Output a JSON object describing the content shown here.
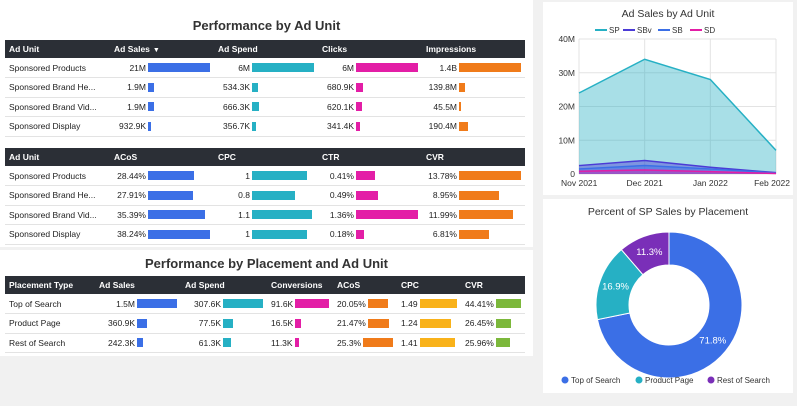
{
  "colors": {
    "blue": "#3b6fe6",
    "teal": "#26b0c4",
    "pink": "#e31ea6",
    "orange": "#f07b1a",
    "yellow": "#f9b21a",
    "green": "#7cb83b",
    "purple": "#7a2fb8"
  },
  "section1": {
    "title": "Performance by Ad Unit",
    "table1": {
      "headers": [
        "Ad Unit",
        "Ad Sales",
        "Ad Spend",
        "Clicks",
        "Impressions"
      ],
      "rows": [
        {
          "unit": "Sponsored Products",
          "ad_sales": "21M",
          "ad_sales_frac": 1.0,
          "ad_spend": "6M",
          "ad_spend_frac": 1.0,
          "clicks": "6M",
          "clicks_frac": 1.0,
          "impressions": "1.4B",
          "impressions_frac": 1.0
        },
        {
          "unit": "Sponsored Brand He...",
          "ad_sales": "1.9M",
          "ad_sales_frac": 0.09,
          "ad_spend": "534.3K",
          "ad_spend_frac": 0.09,
          "clicks": "680.9K",
          "clicks_frac": 0.11,
          "impressions": "139.8M",
          "impressions_frac": 0.1
        },
        {
          "unit": "Sponsored Brand Vid...",
          "ad_sales": "1.9M",
          "ad_sales_frac": 0.09,
          "ad_spend": "666.3K",
          "ad_spend_frac": 0.11,
          "clicks": "620.1K",
          "clicks_frac": 0.1,
          "impressions": "45.5M",
          "impressions_frac": 0.03
        },
        {
          "unit": "Sponsored Display",
          "ad_sales": "932.9K",
          "ad_sales_frac": 0.045,
          "ad_spend": "356.7K",
          "ad_spend_frac": 0.06,
          "clicks": "341.4K",
          "clicks_frac": 0.06,
          "impressions": "190.4M",
          "impressions_frac": 0.14
        }
      ]
    },
    "table2": {
      "headers": [
        "Ad Unit",
        "ACoS",
        "CPC",
        "CTR",
        "CVR"
      ],
      "rows": [
        {
          "unit": "Sponsored Products",
          "acos": "28.44%",
          "acos_frac": 0.74,
          "cpc": "1",
          "cpc_frac": 0.88,
          "ctr": "0.41%",
          "ctr_frac": 0.3,
          "cvr": "13.78%",
          "cvr_frac": 1.0
        },
        {
          "unit": "Sponsored Brand He...",
          "acos": "27.91%",
          "acos_frac": 0.73,
          "cpc": "0.8",
          "cpc_frac": 0.7,
          "ctr": "0.49%",
          "ctr_frac": 0.36,
          "cvr": "8.95%",
          "cvr_frac": 0.65
        },
        {
          "unit": "Sponsored Brand Vid...",
          "acos": "35.39%",
          "acos_frac": 0.92,
          "cpc": "1.1",
          "cpc_frac": 0.96,
          "ctr": "1.36%",
          "ctr_frac": 1.0,
          "cvr": "11.99%",
          "cvr_frac": 0.87
        },
        {
          "unit": "Sponsored Display",
          "acos": "38.24%",
          "acos_frac": 1.0,
          "cpc": "1",
          "cpc_frac": 0.88,
          "ctr": "0.18%",
          "ctr_frac": 0.13,
          "cvr": "6.81%",
          "cvr_frac": 0.49
        }
      ]
    }
  },
  "section2": {
    "title": "Performance by Placement and Ad Unit",
    "table": {
      "headers": [
        "Placement Type",
        "Ad Sales",
        "Ad Spend",
        "Conversions",
        "ACoS",
        "CPC",
        "CVR"
      ],
      "rows": [
        {
          "type": "Top of Search",
          "ad_sales": "1.5M",
          "ad_sales_frac": 1.0,
          "ad_spend": "307.6K",
          "ad_spend_frac": 1.0,
          "conversions": "91.6K",
          "conversions_frac": 1.0,
          "acos": "20.05%",
          "acos_frac": 0.79,
          "cpc": "1.49",
          "cpc_frac": 1.0,
          "cvr": "44.41%",
          "cvr_frac": 1.0
        },
        {
          "type": "Product Page",
          "ad_sales": "360.9K",
          "ad_sales_frac": 0.24,
          "ad_spend": "77.5K",
          "ad_spend_frac": 0.25,
          "conversions": "16.5K",
          "conversions_frac": 0.18,
          "acos": "21.47%",
          "acos_frac": 0.85,
          "cpc": "1.24",
          "cpc_frac": 0.83,
          "cvr": "26.45%",
          "cvr_frac": 0.6
        },
        {
          "type": "Rest of Search",
          "ad_sales": "242.3K",
          "ad_sales_frac": 0.16,
          "ad_spend": "61.3K",
          "ad_spend_frac": 0.2,
          "conversions": "11.3K",
          "conversions_frac": 0.12,
          "acos": "25.3%",
          "acos_frac": 1.0,
          "cpc": "1.41",
          "cpc_frac": 0.95,
          "cvr": "25.96%",
          "cvr_frac": 0.58
        }
      ]
    }
  },
  "area_chart": {
    "title": "Ad Sales by Ad Unit",
    "chart_data": {
      "type": "area",
      "x": [
        "Nov 2021",
        "Dec 2021",
        "Jan 2022",
        "Feb 2022"
      ],
      "ylim": [
        0,
        40000000
      ],
      "yticks": [
        "0",
        "10M",
        "20M",
        "30M",
        "40M"
      ],
      "series": [
        {
          "name": "SP",
          "values": [
            24000000,
            34000000,
            28000000,
            7000000
          ],
          "color": "#26b0c4"
        },
        {
          "name": "SBv",
          "values": [
            2500000,
            4000000,
            2000000,
            400000
          ],
          "color": "#4b3bd6"
        },
        {
          "name": "SB",
          "values": [
            1500000,
            2500000,
            1500000,
            300000
          ],
          "color": "#3b6fe6"
        },
        {
          "name": "SD",
          "values": [
            800000,
            1200000,
            700000,
            150000
          ],
          "color": "#e31ea6"
        }
      ]
    }
  },
  "donut_chart": {
    "title": "Percent of SP Sales by Placement",
    "chart_data": {
      "type": "pie",
      "labels": [
        "Top of Search",
        "Product Page",
        "Rest of Search"
      ],
      "values": [
        71.8,
        16.9,
        11.3
      ],
      "value_labels": [
        "71.8%",
        "16.9%",
        "11.3%"
      ],
      "colors": [
        "#3b6fe6",
        "#26b0c4",
        "#7a2fb8"
      ],
      "legend": "bottom"
    }
  }
}
